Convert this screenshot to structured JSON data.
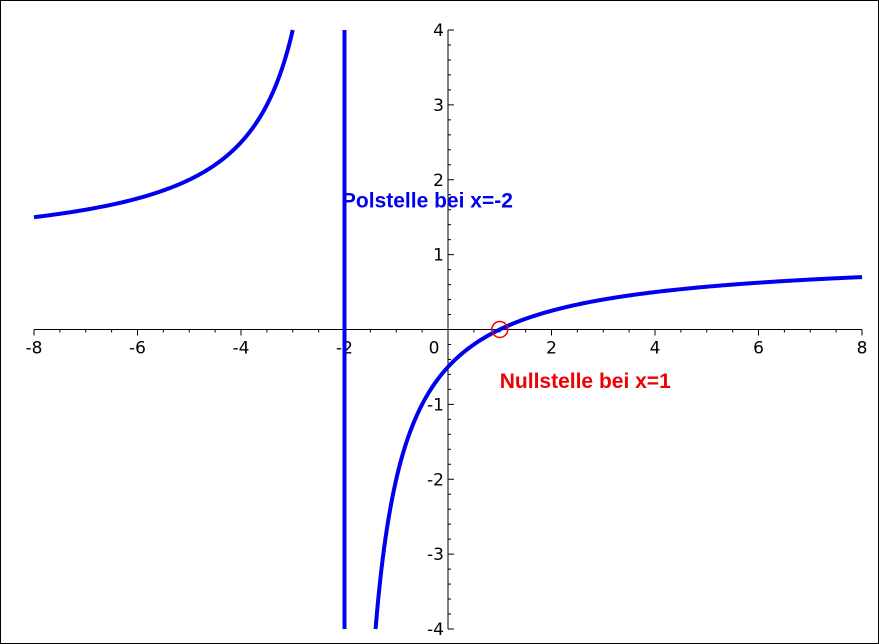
{
  "chart_data": {
    "type": "line",
    "title": "",
    "xlabel": "",
    "ylabel": "",
    "xlim": [
      -8,
      8
    ],
    "ylim": [
      -4,
      4
    ],
    "x_ticks": [
      -8,
      -6,
      -4,
      -2,
      0,
      2,
      4,
      6,
      8
    ],
    "x_tick_labels": [
      "-8",
      "-6",
      "-4",
      "-2",
      "0",
      "2",
      "4",
      "6",
      "8"
    ],
    "y_ticks": [
      -4,
      -3,
      -2,
      -1,
      1,
      2,
      3,
      4
    ],
    "y_tick_labels": [
      "-4",
      "-3",
      "-2",
      "-1",
      "1",
      "2",
      "3",
      "4"
    ],
    "grid": false,
    "series": [
      {
        "function": "(x-1)/(x+2)",
        "color": "#0000ee",
        "branches": [
          {
            "x": [
              -8,
              -7,
              -6,
              -5,
              -4.5,
              -4,
              -3.5,
              -3.25,
              -3
            ],
            "y": [
              1.5,
              1.6,
              1.75,
              2.0,
              2.2,
              2.5,
              3.0,
              3.4,
              4.0
            ]
          },
          {
            "x": [
              -1.4,
              -1.25,
              -1,
              -0.5,
              0,
              0.5,
              1,
              2,
              3,
              4,
              5,
              6,
              7,
              8
            ],
            "y": [
              -4.0,
              -3.0,
              -2.0,
              -1.0,
              -0.5,
              -0.2,
              0.0,
              0.25,
              0.4,
              0.5,
              0.571,
              0.625,
              0.667,
              0.7
            ]
          }
        ]
      }
    ],
    "asymptote": {
      "x": -2,
      "color": "#0000ee"
    },
    "zero_marker": {
      "x": 1,
      "y": 0,
      "color": "#ee0000"
    },
    "annotations": [
      {
        "text": "Polstelle bei x=-2",
        "x": -2.05,
        "y": 1.63,
        "color": "#0000ee"
      },
      {
        "text": "Nullstelle bei x=1",
        "x": 1.0,
        "y": -0.78,
        "color": "#ee0000"
      }
    ]
  }
}
